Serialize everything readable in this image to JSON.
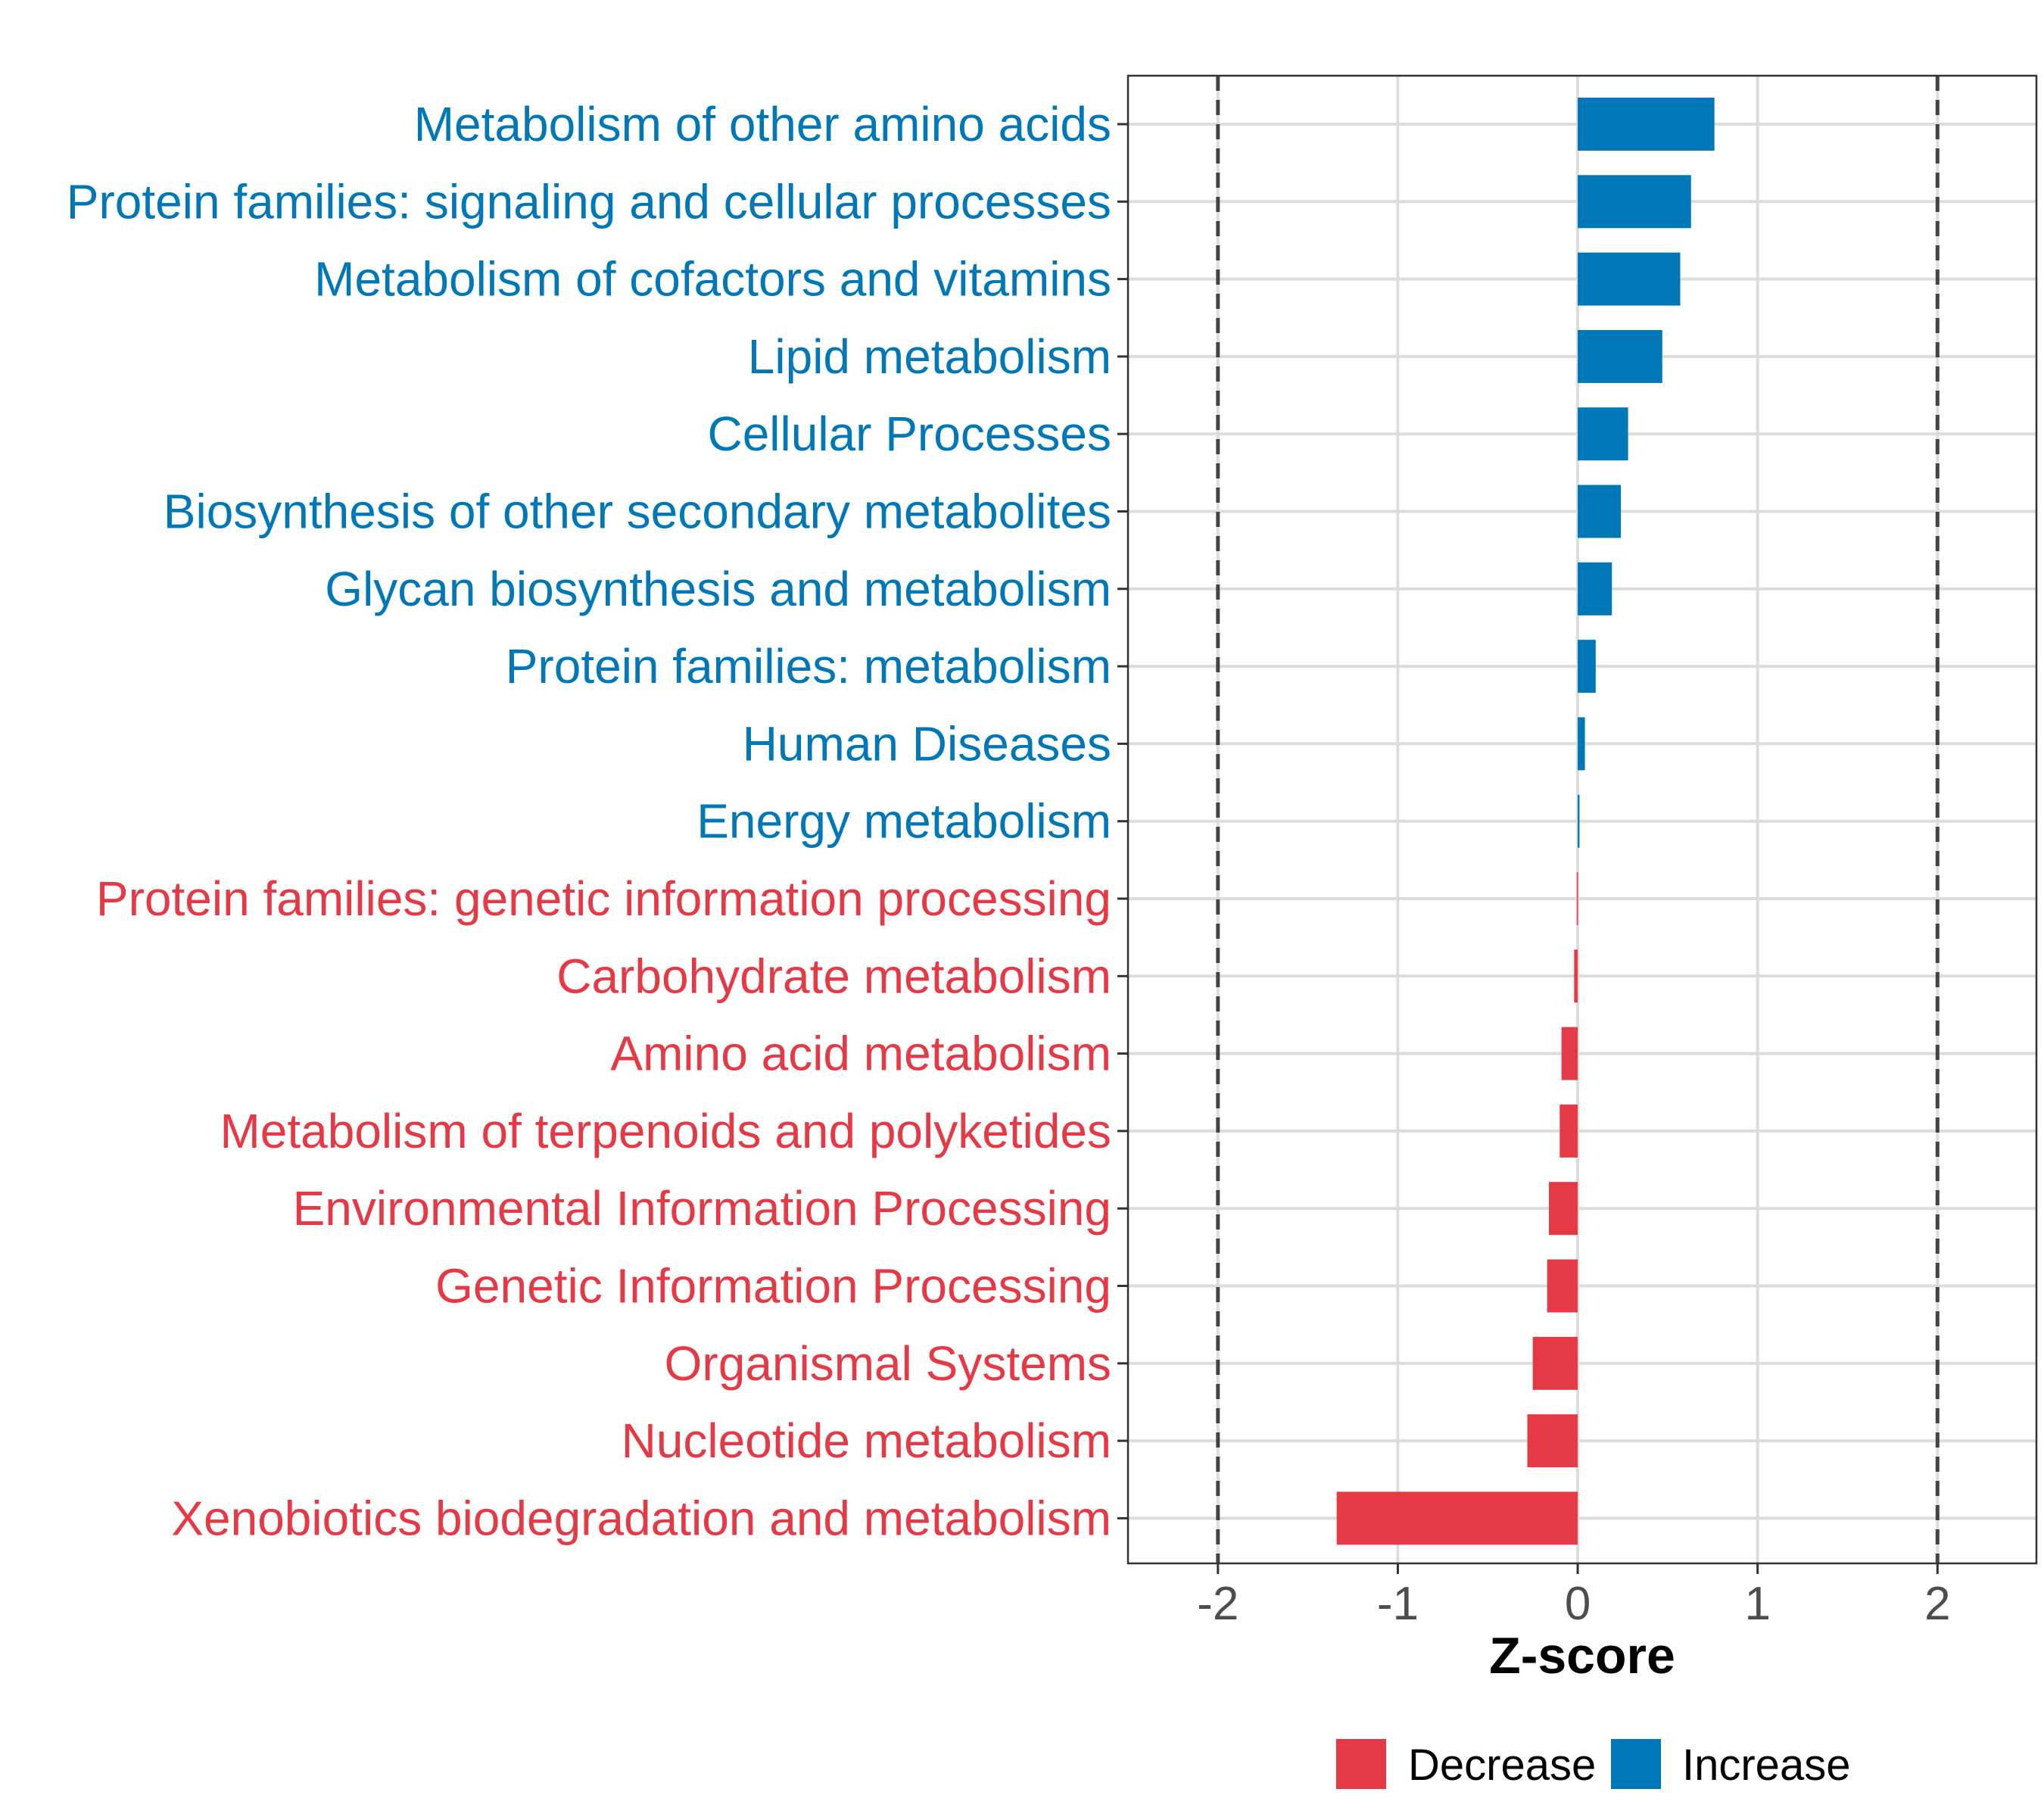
{
  "chart_data": {
    "type": "bar",
    "orientation": "horizontal",
    "title": "",
    "xlabel": "Z-score",
    "ylabel": "",
    "xlim": [
      -2.5,
      2.55
    ],
    "xticks": [
      -2,
      -1,
      0,
      1,
      2
    ],
    "xtick_labels": [
      "-2",
      "-1",
      "0",
      "1",
      "2"
    ],
    "reference_lines": [
      -2,
      2
    ],
    "grid": true,
    "legend_position": "bottom",
    "colors": {
      "Decrease": "#E63946",
      "Increase": "#0077B6"
    },
    "legend": [
      "Decrease",
      "Increase"
    ],
    "categories": [
      "Metabolism of other amino acids",
      "Protein families: signaling and cellular processes",
      "Metabolism of cofactors and vitamins",
      "Lipid metabolism",
      "Cellular Processes",
      "Biosynthesis of other secondary metabolites",
      "Glycan biosynthesis and metabolism",
      "Protein families: metabolism",
      "Human Diseases",
      "Energy metabolism",
      "Protein families: genetic information processing",
      "Carbohydrate metabolism",
      "Amino acid metabolism",
      "Metabolism of terpenoids and polyketides",
      "Environmental Information Processing",
      "Genetic Information Processing",
      "Organismal Systems",
      "Nucleotide metabolism",
      "Xenobiotics biodegradation and metabolism"
    ],
    "values": [
      0.76,
      0.63,
      0.57,
      0.47,
      0.28,
      0.24,
      0.19,
      0.1,
      0.04,
      0.01,
      -0.005,
      -0.02,
      -0.09,
      -0.1,
      -0.16,
      -0.17,
      -0.25,
      -0.28,
      -1.34
    ],
    "groups": [
      "Increase",
      "Increase",
      "Increase",
      "Increase",
      "Increase",
      "Increase",
      "Increase",
      "Increase",
      "Increase",
      "Increase",
      "Decrease",
      "Decrease",
      "Decrease",
      "Decrease",
      "Decrease",
      "Decrease",
      "Decrease",
      "Decrease",
      "Decrease"
    ]
  }
}
